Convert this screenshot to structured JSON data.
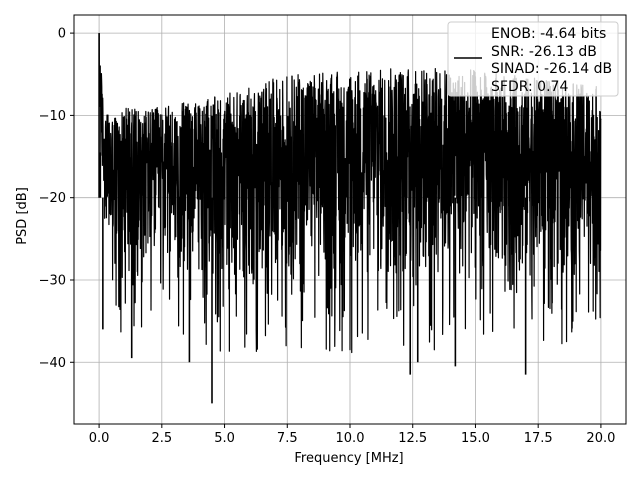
{
  "chart_data": {
    "type": "line",
    "title": "",
    "xlabel": "Frequency [MHz]",
    "ylabel": "PSD [dB]",
    "xlim": [
      -1.0,
      21.0
    ],
    "ylim": [
      -47.5,
      2.2
    ],
    "x_ticks": [
      0.0,
      2.5,
      5.0,
      7.5,
      10.0,
      12.5,
      15.0,
      17.5,
      20.0
    ],
    "x_tick_labels": [
      "0.0",
      "2.5",
      "5.0",
      "7.5",
      "10.0",
      "12.5",
      "15.0",
      "17.5",
      "20.0"
    ],
    "y_ticks": [
      0,
      -10,
      -20,
      -30,
      -40
    ],
    "y_tick_labels": [
      "0",
      "−10",
      "−20",
      "−30",
      "−40"
    ],
    "grid": true,
    "legend_position": "top-right",
    "legend": {
      "entries": [
        "ENOB: -4.64 bits",
        "SNR: -26.13 dB",
        "SINAD: -26.14 dB",
        "SFDR: 0.74"
      ]
    },
    "series": [
      {
        "color": "#000000",
        "x_range": [
          0.0,
          20.0
        ],
        "description": "dense noisy PSD trace",
        "upper_envelope": [
          [
            0.0,
            0.0
          ],
          [
            0.2,
            -10
          ],
          [
            1.0,
            -9
          ],
          [
            2.5,
            -9
          ],
          [
            5.0,
            -7.5
          ],
          [
            7.5,
            -5
          ],
          [
            10.0,
            -4.5
          ],
          [
            12.5,
            -4
          ],
          [
            15.0,
            -4.5
          ],
          [
            17.5,
            -5.5
          ],
          [
            20.0,
            -6.5
          ]
        ],
        "lower_envelope": [
          [
            0.0,
            -15
          ],
          [
            0.5,
            -33
          ],
          [
            2.5,
            -30
          ],
          [
            5.0,
            -33
          ],
          [
            7.5,
            -33
          ],
          [
            10.0,
            -33
          ],
          [
            12.5,
            -33
          ],
          [
            15.0,
            -32
          ],
          [
            17.5,
            -33
          ],
          [
            20.0,
            -30
          ]
        ],
        "notable_points": [
          [
            0.0,
            0.0
          ],
          [
            0.05,
            -14.5
          ],
          [
            4.5,
            -45
          ],
          [
            12.4,
            -41.5
          ],
          [
            12.7,
            -40
          ],
          [
            17.0,
            -41.5
          ],
          [
            3.6,
            -40
          ],
          [
            1.3,
            -39.5
          ],
          [
            14.2,
            -40.5
          ],
          [
            0.15,
            -36
          ]
        ]
      }
    ]
  }
}
